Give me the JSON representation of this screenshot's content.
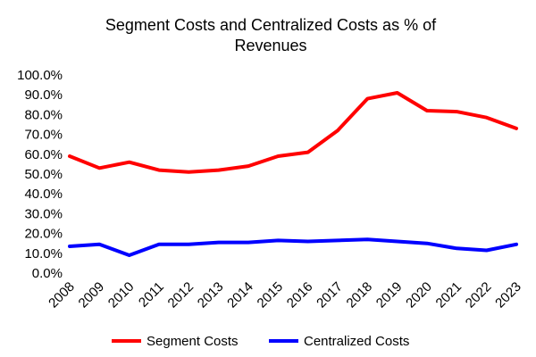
{
  "chart_data": {
    "type": "line",
    "title_lines": [
      "Segment Costs and Centralized Costs as % of",
      "Revenues"
    ],
    "xlabel": "",
    "ylabel": "",
    "categories": [
      "2008",
      "2009",
      "2010",
      "2011",
      "2012",
      "2013",
      "2014",
      "2015",
      "2016",
      "2017",
      "2018",
      "2019",
      "2020",
      "2021",
      "2022",
      "2023"
    ],
    "ylim": [
      0,
      100
    ],
    "y_ticks": [
      0,
      10,
      20,
      30,
      40,
      50,
      60,
      70,
      80,
      90,
      100
    ],
    "y_tick_labels": [
      "0.0%",
      "10.0%",
      "20.0%",
      "30.0%",
      "40.0%",
      "50.0%",
      "60.0%",
      "70.0%",
      "80.0%",
      "90.0%",
      "100.0%"
    ],
    "grid": false,
    "legend_position": "bottom",
    "series": [
      {
        "name": "Segment Costs",
        "color": "#ff0000",
        "values": [
          59,
          53,
          56,
          52,
          51,
          52,
          54,
          59,
          61,
          72,
          88,
          91,
          82,
          81.5,
          78.5,
          73
        ]
      },
      {
        "name": "Centralized Costs",
        "color": "#0000ff",
        "values": [
          13.5,
          14.5,
          9,
          14.5,
          14.5,
          15.5,
          15.5,
          16.5,
          16,
          16.5,
          17,
          16,
          15,
          12.5,
          11.5,
          14.5
        ]
      }
    ]
  }
}
